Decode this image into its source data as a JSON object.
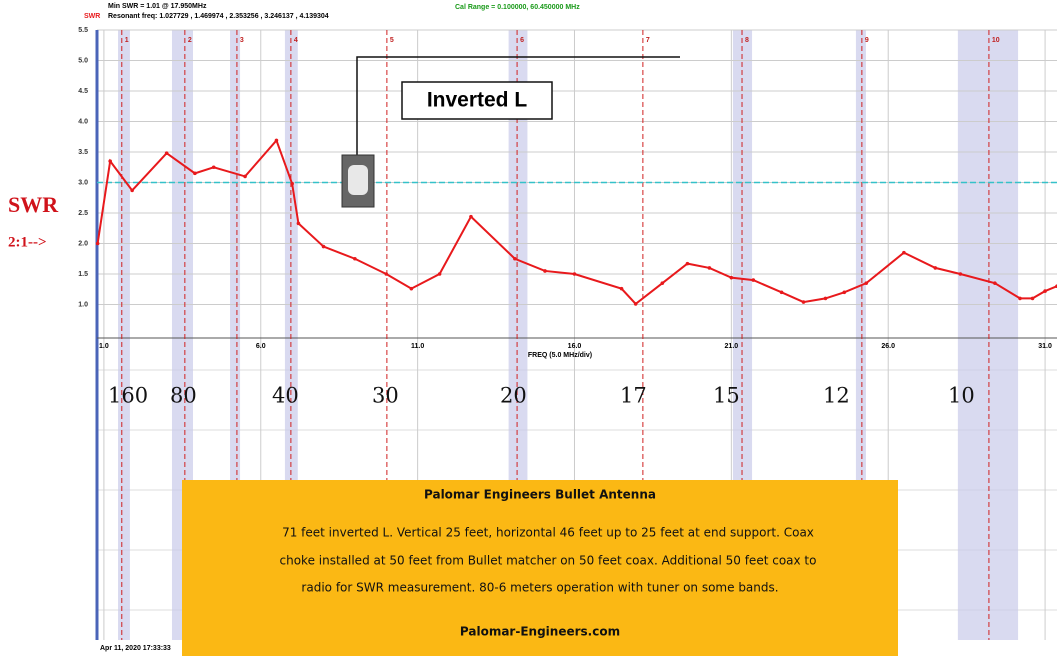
{
  "chart_data": {
    "type": "line",
    "header_min_swr": "Min SWR =  1.01 @  17.950MHz",
    "header_swr": "SWR",
    "header_resonant": "Resonant freq:  1.027729 , 1.469974 , 2.353256 , 3.246137 , 4.139304",
    "header_cal": "Cal Range = 0.100000,  60.450000 MHz",
    "x_label": "FREQ (5.0 MHz/div)",
    "y_label": "SWR",
    "ref_label": "2:1-->",
    "ref_line": 3.0,
    "antenna_label": "Inverted L",
    "date": "Apr 11, 2020  17:33:33",
    "info_title": "Palomar Engineers Bullet Antenna",
    "info_lines": [
      "71 feet inverted L.  Vertical 25 feet, horizontal 46 feet up to 25 feet at end support. Coax",
      "choke installed at 50 feet from Bullet matcher on 50 feet coax.  Additional 50 feet coax to",
      "radio for SWR measurement.  80-6 meters operation with tuner on some bands."
    ],
    "info_site": "Palomar-Engineers.com",
    "band_labels": [
      "160",
      "80",
      "40",
      "30",
      "20",
      "17",
      "15",
      "12",
      "10"
    ],
    "markers": [
      {
        "label": "1",
        "x": 1.57
      },
      {
        "label": "2",
        "x": 3.58
      },
      {
        "label": "3",
        "x": 5.24
      },
      {
        "label": "4",
        "x": 6.96
      },
      {
        "label": "5",
        "x": 10.02
      },
      {
        "label": "6",
        "x": 14.17
      },
      {
        "label": "7",
        "x": 18.18
      },
      {
        "label": "8",
        "x": 21.34
      },
      {
        "label": "9",
        "x": 25.16
      },
      {
        "label": "10",
        "x": 29.21
      }
    ],
    "bands": [
      [
        1.45,
        1.83
      ],
      [
        3.17,
        3.84
      ],
      [
        5.02,
        5.34
      ],
      [
        6.77,
        7.18
      ],
      [
        13.9,
        14.5
      ],
      [
        21.05,
        21.66
      ],
      [
        24.97,
        25.29
      ],
      [
        28.22,
        30.14
      ]
    ],
    "series": [
      {
        "name": "SWR",
        "color": "#e8191c",
        "x": [
          0.8,
          1.2,
          1.9,
          3.0,
          3.9,
          4.5,
          5.5,
          6.5,
          7.0,
          7.2,
          8.0,
          9.0,
          10.0,
          10.8,
          11.7,
          12.7,
          14.1,
          15.06,
          16.0,
          17.5,
          17.95,
          18.8,
          19.6,
          20.3,
          21.0,
          21.7,
          22.6,
          23.3,
          24.0,
          24.6,
          25.3,
          26.5,
          27.5,
          28.3,
          29.4,
          30.2,
          30.6,
          31.0,
          31.38
        ],
        "values": [
          2.0,
          3.35,
          2.87,
          3.48,
          3.15,
          3.25,
          3.1,
          3.69,
          2.98,
          2.33,
          1.95,
          1.75,
          1.5,
          1.26,
          1.5,
          2.44,
          1.75,
          1.55,
          1.5,
          1.26,
          1.01,
          1.35,
          1.67,
          1.6,
          1.44,
          1.4,
          1.2,
          1.04,
          1.1,
          1.2,
          1.35,
          1.85,
          1.6,
          1.5,
          1.35,
          1.1,
          1.1,
          1.22,
          1.3
        ]
      }
    ],
    "xlim": [
      0.78,
      31.38
    ],
    "xticks": [
      {
        "value": 1,
        "label": "1.0"
      },
      {
        "value": 6,
        "label": "6.0"
      },
      {
        "value": 11,
        "label": "11.0"
      },
      {
        "value": 16,
        "label": "16.0"
      },
      {
        "value": 21,
        "label": "21.0"
      },
      {
        "value": 26,
        "label": "26.0"
      },
      {
        "value": 31,
        "label": "31.0"
      }
    ],
    "ylim": [
      0.5,
      5.5
    ],
    "yticks": [
      {
        "value": 1,
        "label": "1.0"
      },
      {
        "value": 1.5,
        "label": "1.5"
      },
      {
        "value": 2,
        "label": "2.0"
      },
      {
        "value": 2.5,
        "label": "2.5"
      },
      {
        "value": 3,
        "label": "3.0"
      },
      {
        "value": 3.5,
        "label": "3.5"
      },
      {
        "value": 4,
        "label": "4.0"
      },
      {
        "value": 4.5,
        "label": "4.5"
      },
      {
        "value": 5,
        "label": "5.0"
      },
      {
        "value": 5.5,
        "label": "5.5"
      }
    ],
    "grid": true
  }
}
